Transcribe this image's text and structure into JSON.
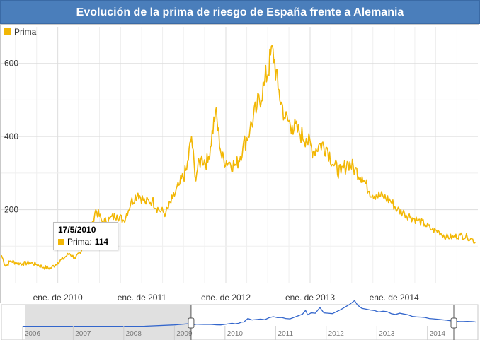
{
  "title": "Evolución de la prima de riesgo de España frente a Alemania",
  "legend": {
    "label": "Prima"
  },
  "colors": {
    "series": "#f2b705",
    "accent": "#4a7ebb",
    "navigator": "#3366cc"
  },
  "tooltip": {
    "date": "17/5/2010",
    "series": "Prima",
    "value": "114"
  },
  "navigator": {
    "year_labels": [
      "2006",
      "2007",
      "2008",
      "2009",
      "2010",
      "2011",
      "2012",
      "2013",
      "2014"
    ]
  },
  "chart_data": {
    "type": "line",
    "title": "Evolución de la prima de riesgo de España frente a Alemania",
    "xlabel": "",
    "ylabel": "",
    "x_range": [
      "2009-05-01",
      "2014-12-31"
    ],
    "ylim": [
      0,
      700
    ],
    "y_ticks": [
      200,
      400,
      600
    ],
    "x_tick_labels": [
      {
        "date": "2010-01-01",
        "label": "ene. de 2010"
      },
      {
        "date": "2011-01-01",
        "label": "ene. de 2011"
      },
      {
        "date": "2012-01-01",
        "label": "ene. de 2012"
      },
      {
        "date": "2013-01-01",
        "label": "ene. de 2013"
      },
      {
        "date": "2014-01-01",
        "label": "ene. de 2014"
      }
    ],
    "grid": true,
    "legend_position": "top-left",
    "series": [
      {
        "name": "Prima",
        "points": [
          [
            "2009-05-01",
            75
          ],
          [
            "2009-05-20",
            45
          ],
          [
            "2009-06-10",
            60
          ],
          [
            "2009-07-01",
            55
          ],
          [
            "2009-08-01",
            52
          ],
          [
            "2009-09-01",
            55
          ],
          [
            "2009-10-01",
            50
          ],
          [
            "2009-11-01",
            42
          ],
          [
            "2009-12-01",
            40
          ],
          [
            "2010-01-01",
            55
          ],
          [
            "2010-02-01",
            70
          ],
          [
            "2010-02-20",
            80
          ],
          [
            "2010-03-15",
            68
          ],
          [
            "2010-04-10",
            80
          ],
          [
            "2010-05-01",
            110
          ],
          [
            "2010-05-17",
            114
          ],
          [
            "2010-06-15",
            200
          ],
          [
            "2010-07-15",
            165
          ],
          [
            "2010-08-15",
            175
          ],
          [
            "2010-09-15",
            185
          ],
          [
            "2010-10-15",
            170
          ],
          [
            "2010-11-15",
            220
          ],
          [
            "2010-12-15",
            245
          ],
          [
            "2011-01-15",
            220
          ],
          [
            "2011-02-15",
            225
          ],
          [
            "2011-03-15",
            200
          ],
          [
            "2011-04-15",
            190
          ],
          [
            "2011-05-15",
            230
          ],
          [
            "2011-06-15",
            270
          ],
          [
            "2011-07-15",
            310
          ],
          [
            "2011-08-05",
            400
          ],
          [
            "2011-08-20",
            290
          ],
          [
            "2011-09-15",
            340
          ],
          [
            "2011-10-15",
            330
          ],
          [
            "2011-11-17",
            470
          ],
          [
            "2011-12-15",
            340
          ],
          [
            "2012-01-15",
            330
          ],
          [
            "2012-02-15",
            320
          ],
          [
            "2012-03-15",
            370
          ],
          [
            "2012-04-15",
            420
          ],
          [
            "2012-05-15",
            480
          ],
          [
            "2012-06-15",
            540
          ],
          [
            "2012-07-24",
            640
          ],
          [
            "2012-08-15",
            530
          ],
          [
            "2012-09-15",
            450
          ],
          [
            "2012-10-15",
            430
          ],
          [
            "2012-11-15",
            410
          ],
          [
            "2012-12-15",
            395
          ],
          [
            "2013-01-15",
            360
          ],
          [
            "2013-02-15",
            380
          ],
          [
            "2013-03-15",
            370
          ],
          [
            "2013-04-15",
            320
          ],
          [
            "2013-05-15",
            300
          ],
          [
            "2013-06-15",
            330
          ],
          [
            "2013-07-15",
            310
          ],
          [
            "2013-08-15",
            290
          ],
          [
            "2013-09-15",
            250
          ],
          [
            "2013-10-15",
            240
          ],
          [
            "2013-11-15",
            235
          ],
          [
            "2013-12-15",
            225
          ],
          [
            "2014-01-15",
            200
          ],
          [
            "2014-02-15",
            190
          ],
          [
            "2014-03-15",
            180
          ],
          [
            "2014-04-15",
            170
          ],
          [
            "2014-05-15",
            160
          ],
          [
            "2014-06-15",
            145
          ],
          [
            "2014-07-15",
            140
          ],
          [
            "2014-08-15",
            125
          ],
          [
            "2014-09-15",
            125
          ],
          [
            "2014-10-15",
            130
          ],
          [
            "2014-11-15",
            125
          ],
          [
            "2014-12-05",
            120
          ],
          [
            "2014-12-20",
            110
          ]
        ]
      }
    ]
  }
}
